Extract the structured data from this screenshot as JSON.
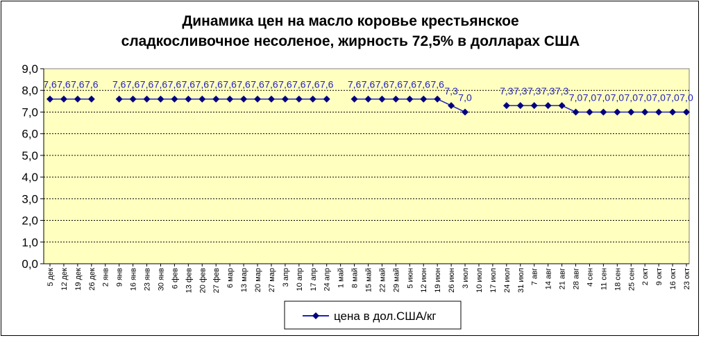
{
  "chart_data": {
    "type": "line",
    "title": [
      "Динамика цен на масло коровье крестьянское",
      "сладкосливочное несоленое, жирность 72,5%  в долларах США"
    ],
    "xlabel": "",
    "ylabel": "",
    "ylim": [
      0,
      9
    ],
    "yticks": [
      "0,0",
      "1,0",
      "2,0",
      "3,0",
      "4,0",
      "5,0",
      "6,0",
      "7,0",
      "8,0",
      "9,0"
    ],
    "grid": true,
    "legend_position": "bottom",
    "categories": [
      "5 дек",
      "12 дек",
      "19 дек",
      "26 дек",
      "2 янв",
      "9 янв",
      "16 янв",
      "23 янв",
      "30 янв",
      "6 фев",
      "13 фев",
      "20 фев",
      "27 фев",
      "6 мар",
      "13 мар",
      "20 мар",
      "27 мар",
      "3 апр",
      "10 апр",
      "17 апр",
      "24 апр",
      "1 май",
      "8 май",
      "15 май",
      "22 май",
      "29 май",
      "5 июн",
      "12 июн",
      "19 июн",
      "26 июн",
      "3 июл",
      "10 июл",
      "17 июл",
      "24 июл",
      "31 июл",
      "7 авг",
      "14 авг",
      "21 авг",
      "28 авг",
      "4 сен",
      "11 сен",
      "18 сен",
      "25 сен",
      "2 окт",
      "9 окт",
      "16 окт",
      "23 окт"
    ],
    "series": [
      {
        "name": "цена в дол.США/кг",
        "color": "#1f1fbf",
        "values": [
          7.6,
          7.6,
          7.6,
          7.6,
          null,
          7.6,
          7.6,
          7.6,
          7.6,
          7.6,
          7.6,
          7.6,
          7.6,
          7.6,
          7.6,
          7.6,
          7.6,
          7.6,
          7.6,
          7.6,
          7.6,
          null,
          7.6,
          7.6,
          7.6,
          7.6,
          7.6,
          7.6,
          7.6,
          7.3,
          7.0,
          null,
          null,
          7.3,
          7.3,
          7.3,
          7.3,
          7.3,
          7.0,
          7.0,
          7.0,
          7.0,
          7.0,
          7.0,
          7.0,
          7.0,
          7.0
        ],
        "labels": [
          "7,6",
          "7,6",
          "7,6",
          "7,6",
          "",
          "7,6",
          "7,6",
          "7,6",
          "7,6",
          "7,6",
          "7,6",
          "7,6",
          "7,6",
          "7,6",
          "7,6",
          "7,6",
          "7,6",
          "7,6",
          "7,6",
          "7,6",
          "7,6",
          "",
          "7,6",
          "7,6",
          "7,6",
          "7,6",
          "7,6",
          "7,6",
          "7,6",
          "7,3",
          "7,0",
          "",
          "",
          "7,3",
          "7,3",
          "7,3",
          "7,3",
          "7,3",
          "7,0",
          "7,0",
          "7,0",
          "7,0",
          "7,0",
          "7,0",
          "7,0",
          "7,0",
          "7,0"
        ]
      }
    ]
  },
  "colors": {
    "plot_background": "#ffffc0",
    "grid": "#000000",
    "series": "#1f1fbf"
  }
}
